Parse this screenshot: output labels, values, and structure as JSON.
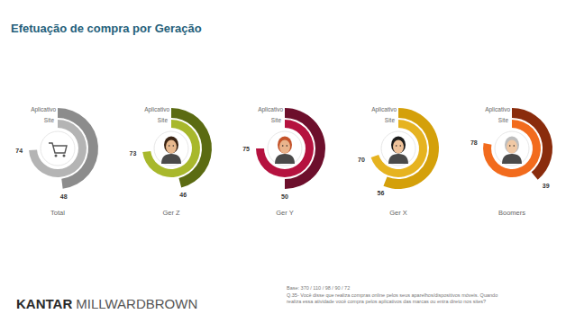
{
  "chart_data": {
    "type": "donut",
    "title": "Efetuação de compra por Geração",
    "categories": [
      "Total",
      "Ger Z",
      "Ger Y",
      "Ger X",
      "Boomers"
    ],
    "series": [
      {
        "name": "Aplicativo",
        "values": [
          48,
          46,
          50,
          56,
          39
        ],
        "colors": [
          "#8c8c8c",
          "#5b6b12",
          "#6d0f2c",
          "#d4a00a",
          "#8a2c0c"
        ]
      },
      {
        "name": "Site",
        "values": [
          74,
          73,
          75,
          70,
          78
        ],
        "colors": [
          "#b4b4b4",
          "#a8b82c",
          "#b5123f",
          "#e6b320",
          "#f26b1d"
        ]
      }
    ],
    "ylim": [
      0,
      100
    ],
    "tick_labels": false,
    "data_labels": true
  },
  "footer": {
    "logo": [
      "KANTAR",
      "MILLWARDBROWN"
    ],
    "base": "Base: 370 / 110 / 98 / 90 / 72",
    "question": [
      "Q.35- Você disse que realiza compras online pelos seus aparelhos/dispositivos móveis. Quando",
      "realiza essa atividade você compra pelos aplicativos das marcas ou entra direto nos sites?"
    ]
  }
}
